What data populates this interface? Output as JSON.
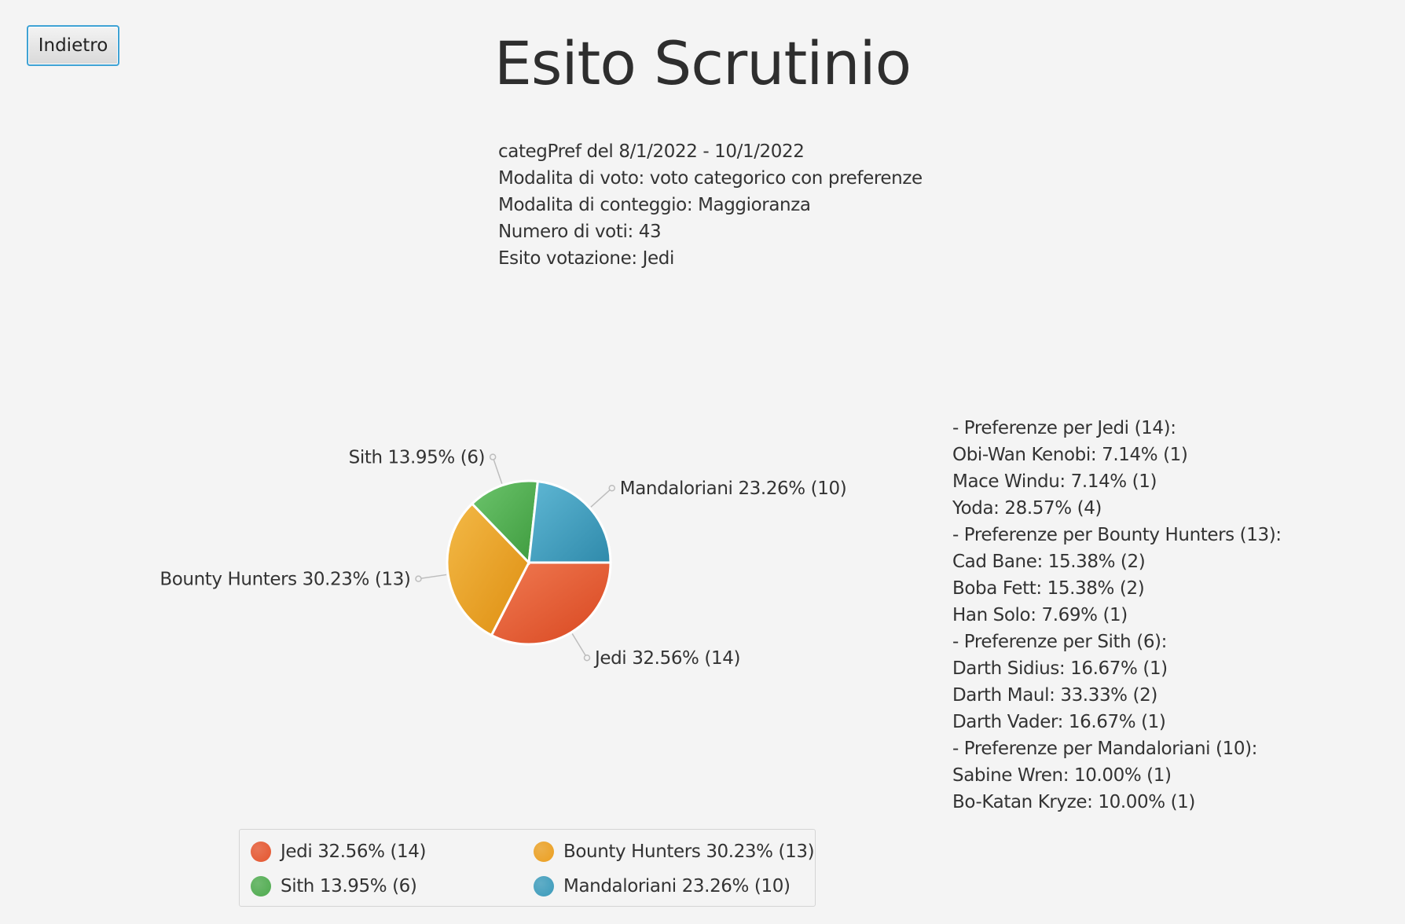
{
  "header": {
    "back_label": "Indietro",
    "title": "Esito Scrutinio"
  },
  "info": {
    "lines": [
      "categPref del 8/1/2022 - 10/1/2022",
      "Modalita di voto: voto categorico con preferenze",
      "Modalita di conteggio: Maggioranza",
      "Numero di voti: 43",
      "Esito votazione: Jedi"
    ]
  },
  "preferences": {
    "lines": [
      "- Preferenze per Jedi (14):",
      "Obi-Wan Kenobi: 7.14% (1)",
      "Mace Windu: 7.14% (1)",
      "Yoda: 28.57% (4)",
      "- Preferenze per Bounty Hunters (13):",
      "Cad Bane: 15.38% (2)",
      "Boba Fett: 15.38% (2)",
      "Han Solo: 7.69% (1)",
      "- Preferenze per Sith (6):",
      "Darth Sidius: 16.67% (1)",
      "Darth Maul: 33.33% (2)",
      "Darth Vader: 16.67% (1)",
      "- Preferenze per Mandaloriani (10):",
      "Sabine Wren: 10.00% (1)",
      "Bo-Katan Kryze: 10.00% (1)"
    ]
  },
  "chart_data": {
    "type": "pie",
    "slices": [
      {
        "label": "Jedi 32.56% (14)",
        "value": 14,
        "color": "#e5552e"
      },
      {
        "label": "Bounty Hunters 30.23% (13)",
        "value": 13,
        "color": "#eb9f20"
      },
      {
        "label": "Sith 13.95% (6)",
        "value": 6,
        "color": "#4eab4e"
      },
      {
        "label": "Mandaloriani 23.26% (10)",
        "value": 10,
        "color": "#3b9bbb"
      }
    ],
    "legend_placement": "bottom"
  }
}
